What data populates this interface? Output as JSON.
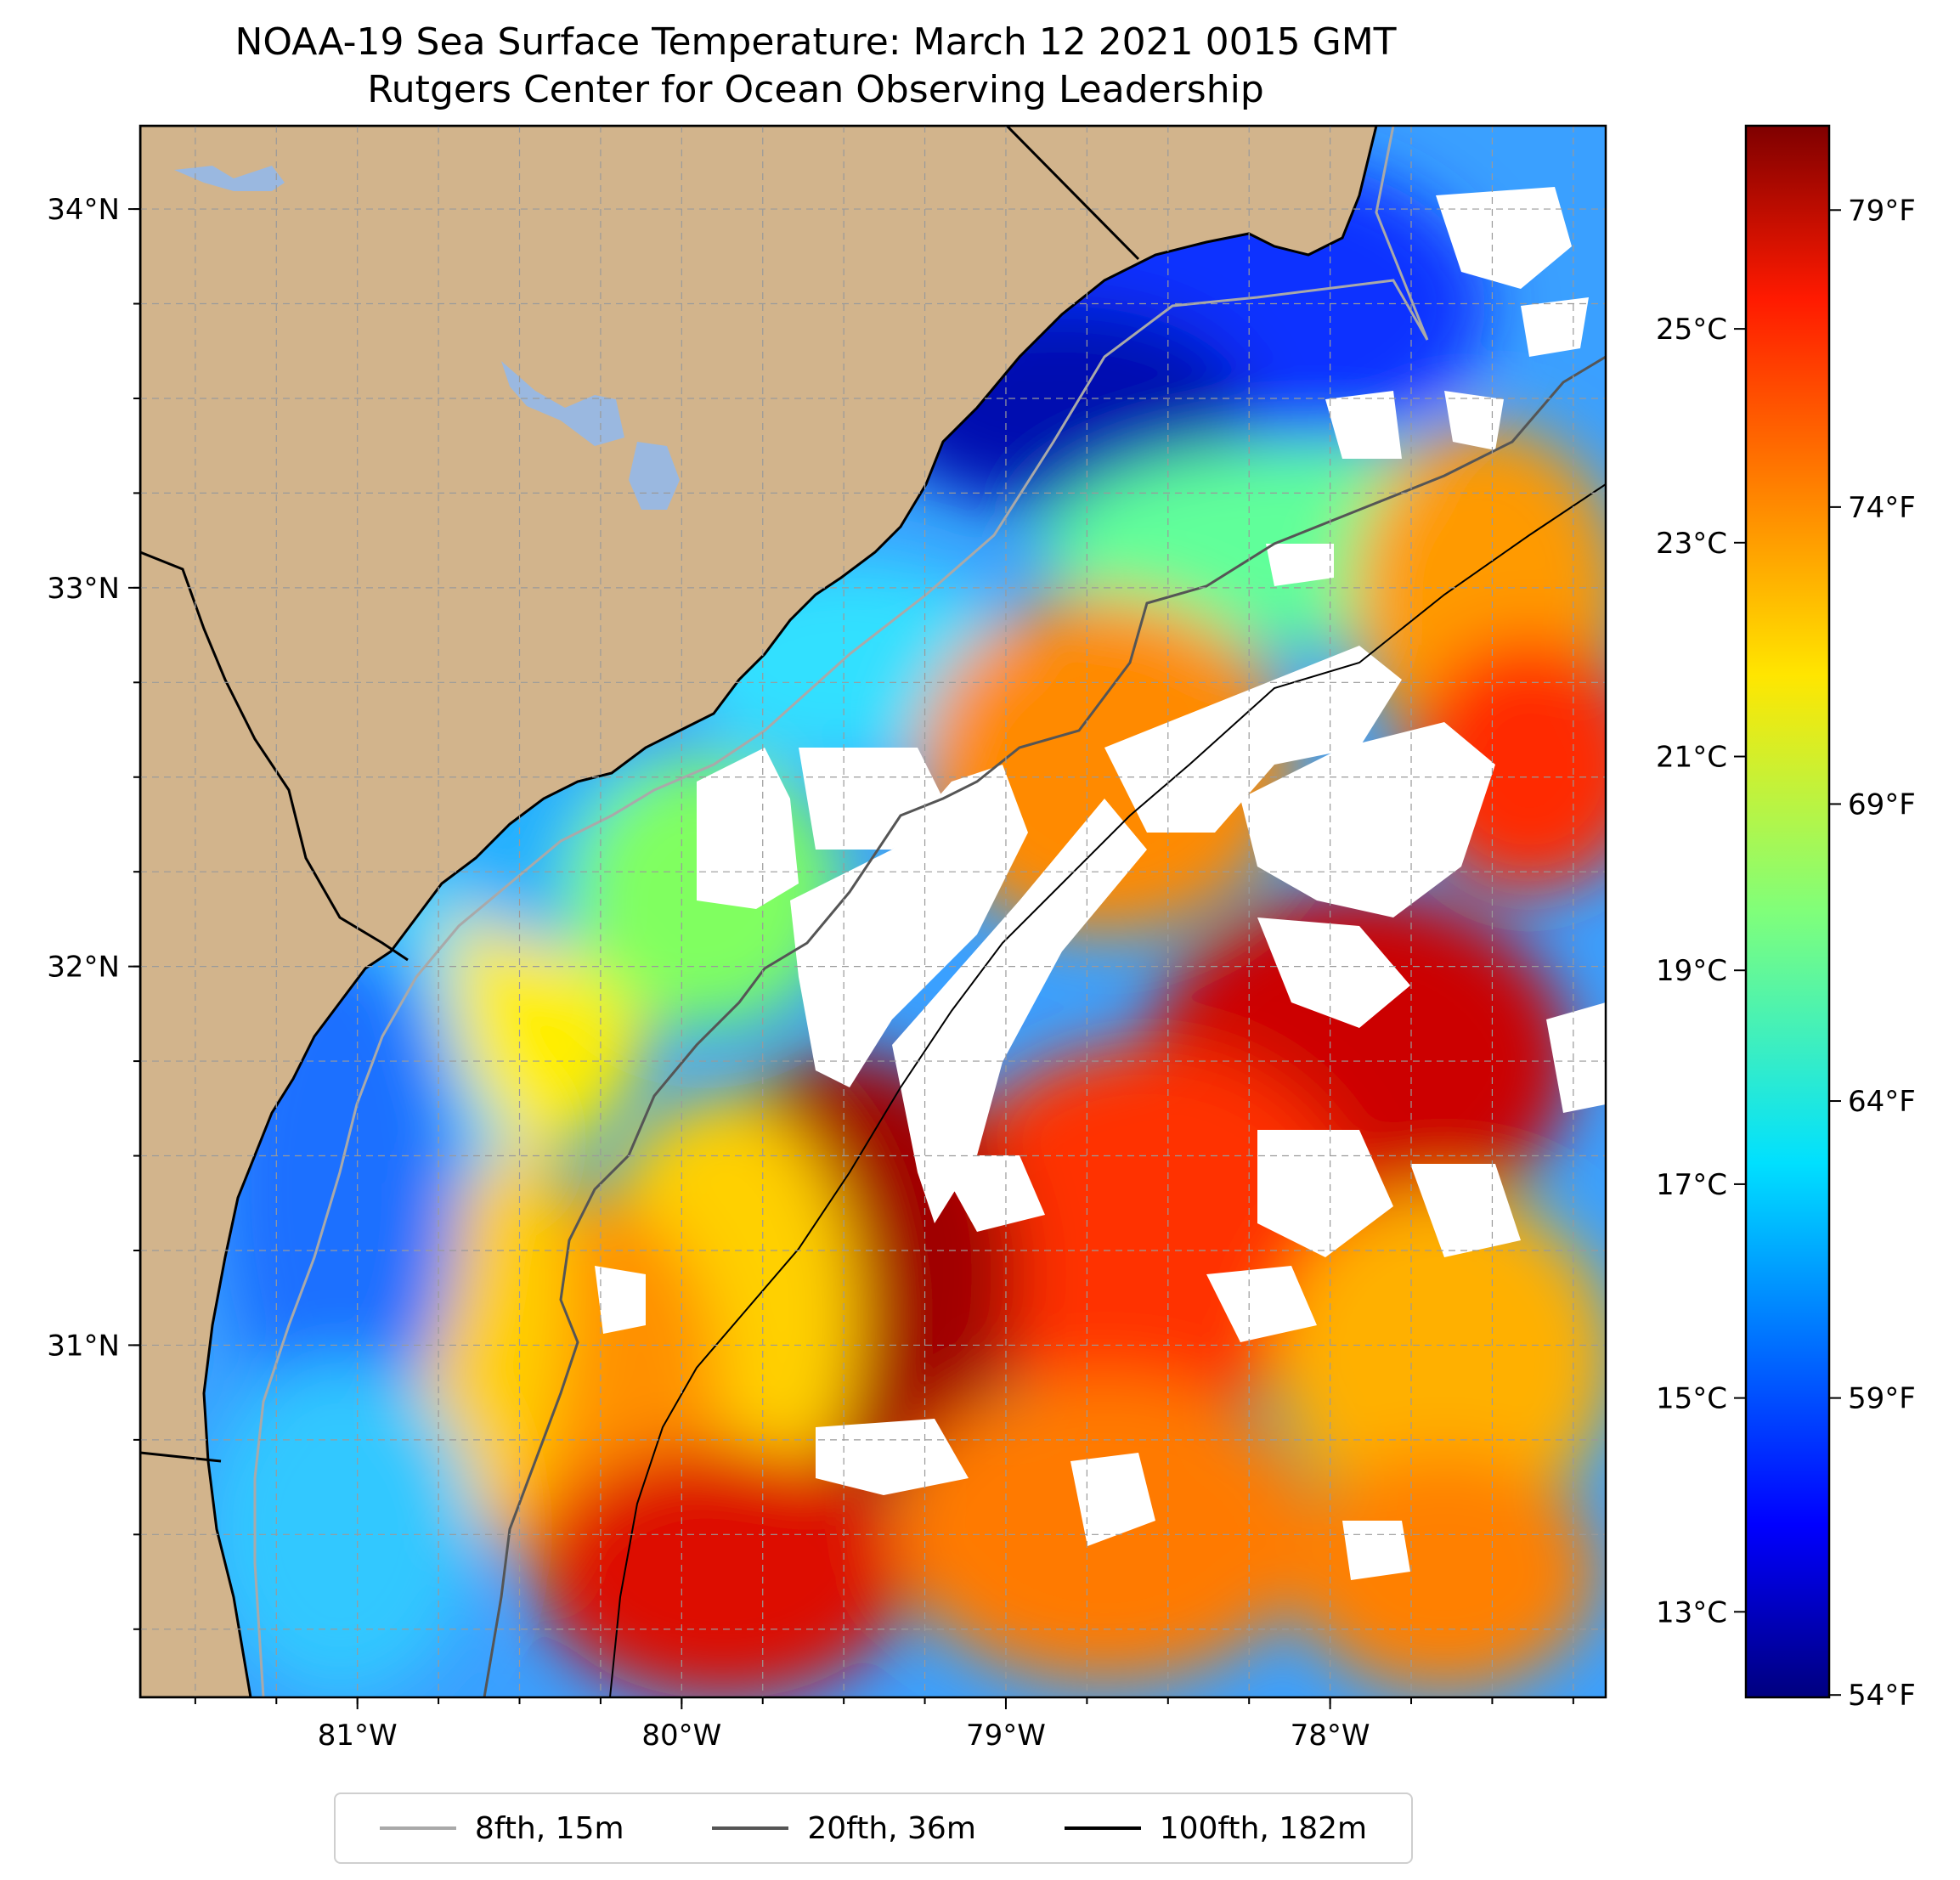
{
  "title": {
    "line1": "NOAA-19 Sea Surface Temperature: March 12 2021 0015 GMT",
    "line2": "Rutgers Center for Ocean Observing Leadership"
  },
  "map": {
    "lon_range": [
      -81.67,
      -77.15
    ],
    "lat_range": [
      30.07,
      34.22
    ],
    "lat_ticks": [
      {
        "value": 34,
        "label": "34°N"
      },
      {
        "value": 33,
        "label": "33°N"
      },
      {
        "value": 32,
        "label": "32°N"
      },
      {
        "value": 31,
        "label": "31°N"
      }
    ],
    "lon_ticks": [
      {
        "value": -81,
        "label": "81°W"
      },
      {
        "value": -80,
        "label": "80°W"
      },
      {
        "value": -79,
        "label": "79°W"
      },
      {
        "value": -78,
        "label": "78°W"
      }
    ],
    "gridlines": "dashed",
    "colors": {
      "land": "#d2b48c",
      "lakes": "#9ab8e0",
      "no_data": "#ffffff"
    }
  },
  "colorbar": {
    "colormap": "jet",
    "range_c": [
      12.2,
      26.9
    ],
    "celsius_ticks": [
      {
        "value": 13,
        "label": "13°C"
      },
      {
        "value": 15,
        "label": "15°C"
      },
      {
        "value": 17,
        "label": "17°C"
      },
      {
        "value": 19,
        "label": "19°C"
      },
      {
        "value": 21,
        "label": "21°C"
      },
      {
        "value": 23,
        "label": "23°C"
      },
      {
        "value": 25,
        "label": "25°C"
      }
    ],
    "fahrenheit_ticks": [
      {
        "value": 54,
        "label": "54°F"
      },
      {
        "value": 59,
        "label": "59°F"
      },
      {
        "value": 64,
        "label": "64°F"
      },
      {
        "value": 69,
        "label": "69°F"
      },
      {
        "value": 74,
        "label": "74°F"
      },
      {
        "value": 79,
        "label": "79°F"
      }
    ]
  },
  "legend": {
    "placement": "bottom-center",
    "entries": [
      {
        "label": "8fth, 15m",
        "color": "#a9a9a9"
      },
      {
        "label": "20fth, 36m",
        "color": "#555555"
      },
      {
        "label": "100fth, 182m",
        "color": "#000000"
      }
    ]
  }
}
